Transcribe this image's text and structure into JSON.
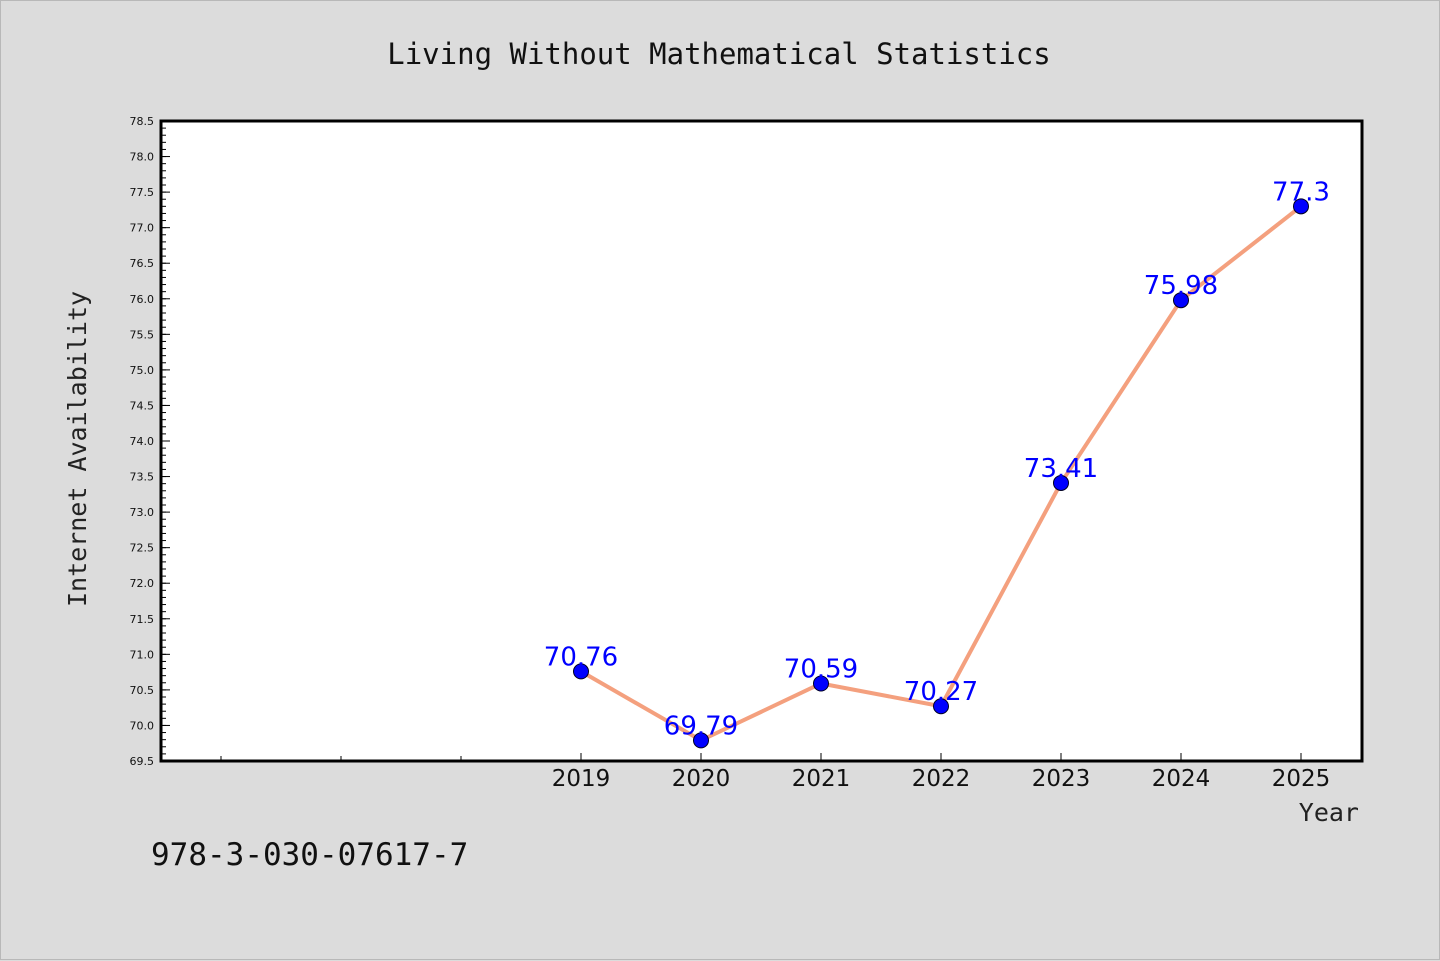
{
  "chart_data": {
    "type": "line",
    "title": "Living Without Mathematical Statistics",
    "xlabel": "Year",
    "ylabel": "Internet Availability",
    "categories": [
      "2019",
      "2020",
      "2021",
      "2022",
      "2023",
      "2024",
      "2025"
    ],
    "series": [
      {
        "values": [
          70.76,
          69.79,
          70.59,
          70.27,
          73.41,
          75.98,
          77.3
        ],
        "data_labels": [
          "70.76",
          "69.79",
          "70.59",
          "70.27",
          "73.41",
          "75.98",
          "77.3"
        ],
        "line_color": "#f4a07e",
        "marker_color": "#0000ff"
      }
    ],
    "ylim": [
      69.5,
      78.5
    ],
    "y_ticks": [
      "69.5",
      "70.0",
      "70.5",
      "71.0",
      "71.5",
      "72.0",
      "72.5",
      "73.0",
      "73.5",
      "74.0",
      "74.5",
      "75.0",
      "75.5",
      "76.0",
      "76.5",
      "77.0",
      "77.5",
      "78.0",
      "78.5"
    ],
    "grid": false,
    "legend": "none"
  },
  "footer": {
    "isbn": "978-3-030-07617-7"
  },
  "colors": {
    "background": "#dcdcdc",
    "plot_background": "#ffffff",
    "line": "#f4a07e",
    "marker": "#0000ff",
    "data_label": "#0000ff"
  }
}
